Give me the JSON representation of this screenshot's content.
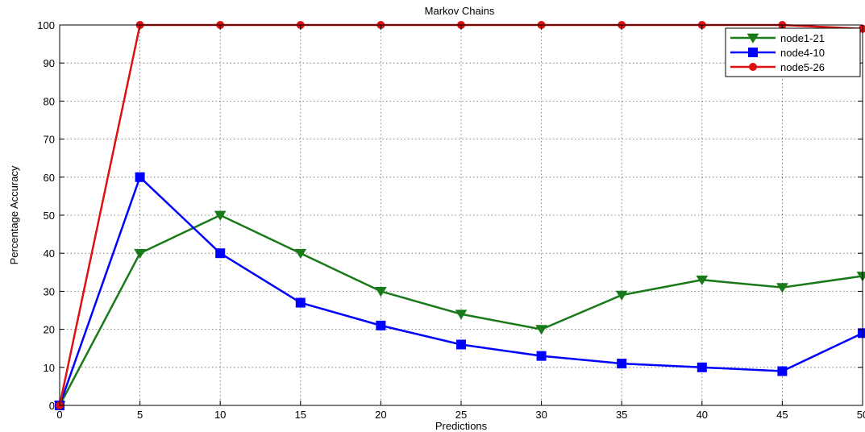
{
  "chart_data": {
    "type": "line",
    "title": "Markov Chains",
    "xlabel": "Predictions",
    "ylabel": "Percentage Accuracy",
    "x": [
      0,
      5,
      10,
      15,
      20,
      25,
      30,
      35,
      40,
      45,
      50
    ],
    "xlim": [
      0,
      50
    ],
    "ylim": [
      0,
      100
    ],
    "xticks": [
      "0",
      "5",
      "10",
      "15",
      "20",
      "25",
      "30",
      "35",
      "40",
      "45",
      "50"
    ],
    "yticks": [
      "0",
      "10",
      "20",
      "30",
      "40",
      "50",
      "60",
      "70",
      "80",
      "90",
      "100"
    ],
    "grid": true,
    "legend_position": "top-right",
    "series": [
      {
        "name": "node1-21",
        "color": "#1a7a1a",
        "marker": "triangle-down",
        "values": [
          0,
          40,
          50,
          40,
          30,
          24,
          20,
          29,
          33,
          31,
          34
        ]
      },
      {
        "name": "node4-10",
        "color": "#0000ff",
        "marker": "square",
        "values": [
          0,
          60,
          40,
          27,
          21,
          16,
          13,
          11,
          10,
          9,
          19
        ]
      },
      {
        "name": "node5-26",
        "color": "#dd1111",
        "marker": "circle",
        "values": [
          0,
          100,
          100,
          100,
          100,
          100,
          100,
          100,
          100,
          100,
          99
        ]
      }
    ]
  }
}
